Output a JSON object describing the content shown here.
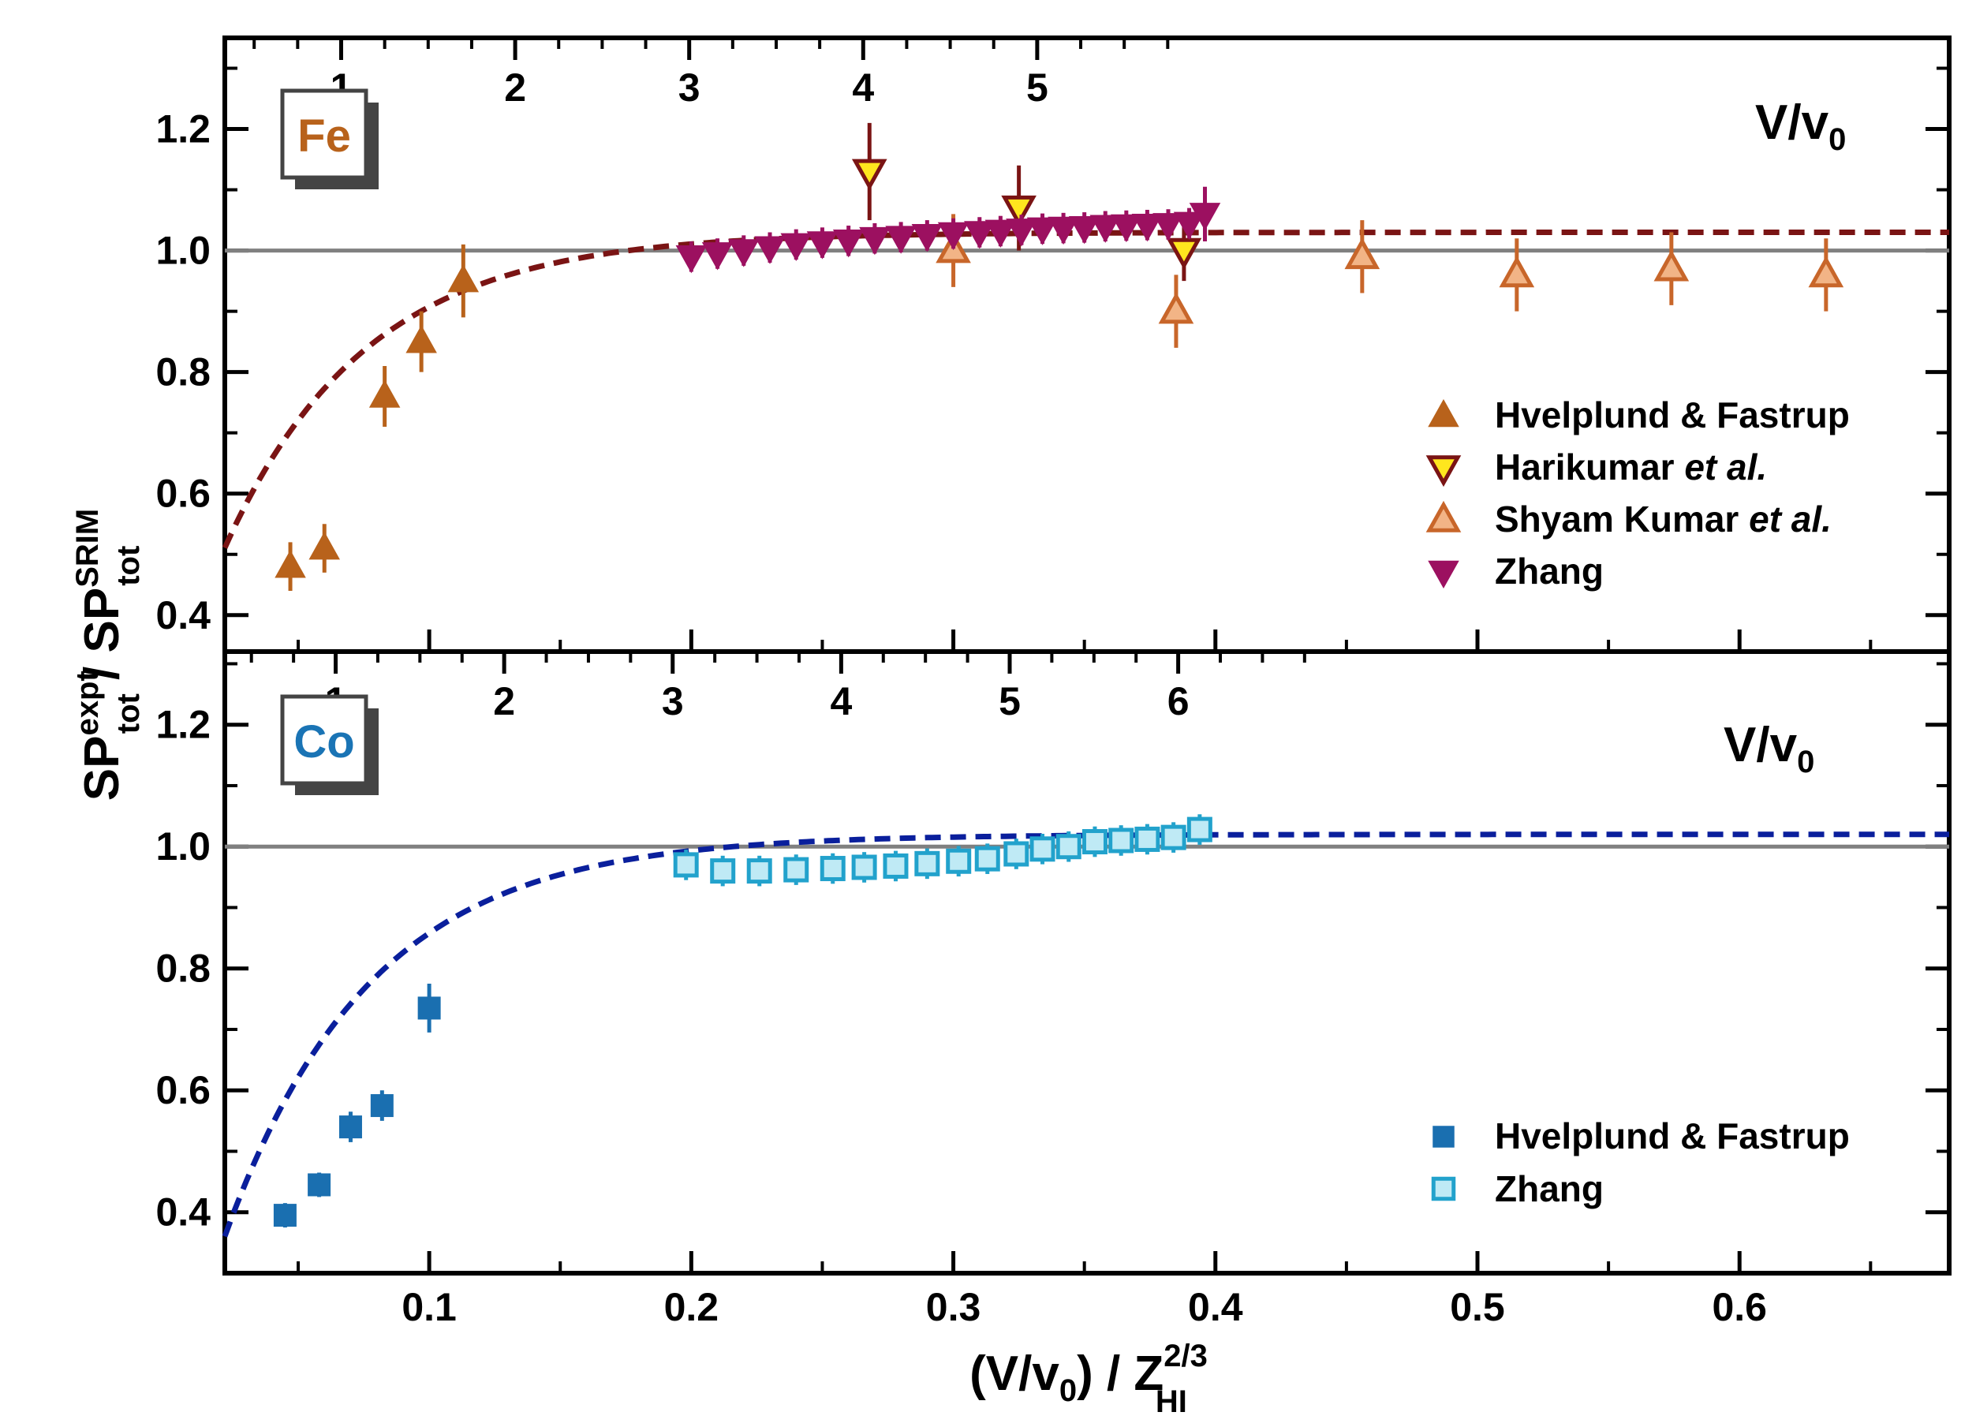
{
  "chart_data": [
    {
      "panel": "top",
      "type": "scatter",
      "element_label": "Fe",
      "element_color": "#b8621b",
      "secondary_axis_label": "V/v",
      "secondary_axis_label_sub": "0",
      "secondary_ticks": [
        "1",
        "2",
        "3",
        "4",
        "5"
      ],
      "secondary_tick_values": [
        1,
        2,
        3,
        4,
        5
      ],
      "ylim": [
        0.34,
        1.35
      ],
      "yticks": [
        "0.4",
        "0.6",
        "0.8",
        "1.0",
        "1.2"
      ],
      "ytick_values": [
        0.4,
        0.6,
        0.8,
        1.0,
        1.2
      ],
      "reference_line": 1.0,
      "fit_curve": {
        "style": "dashed",
        "color": "#7a1414",
        "a": 1.03,
        "b": 0.78,
        "c": 18.5
      },
      "legend_position": "right",
      "series": [
        {
          "name": "Hvelplund & Fastrup",
          "marker": "triangle-up-filled",
          "fill": "#b8621b",
          "stroke": "#b8621b",
          "x": [
            0.047,
            0.06,
            0.083,
            0.097,
            0.113
          ],
          "y": [
            0.48,
            0.51,
            0.76,
            0.85,
            0.95
          ],
          "err": [
            0.04,
            0.04,
            0.05,
            0.05,
            0.06
          ]
        },
        {
          "name": "Harikumar",
          "name_suffix": "et al.",
          "marker": "triangle-down-open",
          "fill": "#ffe61e",
          "stroke": "#7a1414",
          "x": [
            0.268,
            0.325,
            0.388
          ],
          "y": [
            1.13,
            1.07,
            1.0
          ],
          "err": [
            0.08,
            0.07,
            0.05
          ]
        },
        {
          "name": "Shyam Kumar",
          "name_suffix": "et al.",
          "marker": "triangle-up-open",
          "fill": "#f2b486",
          "stroke": "#c8662a",
          "x": [
            0.3,
            0.385,
            0.456,
            0.515,
            0.574,
            0.633
          ],
          "y": [
            1.0,
            0.9,
            0.99,
            0.96,
            0.97,
            0.96
          ],
          "err": [
            0.06,
            0.06,
            0.06,
            0.06,
            0.06,
            0.06
          ]
        },
        {
          "name": "Zhang",
          "marker": "triangle-down-filled",
          "fill": "#9c1060",
          "stroke": "#9c1060",
          "x": [
            0.2,
            0.21,
            0.22,
            0.23,
            0.24,
            0.25,
            0.26,
            0.27,
            0.28,
            0.29,
            0.3,
            0.31,
            0.318,
            0.326,
            0.334,
            0.342,
            0.35,
            0.358,
            0.366,
            0.374,
            0.382,
            0.39,
            0.396
          ],
          "y": [
            0.99,
            0.995,
            1.0,
            1.005,
            1.01,
            1.013,
            1.016,
            1.02,
            1.022,
            1.025,
            1.028,
            1.03,
            1.032,
            1.034,
            1.036,
            1.037,
            1.038,
            1.04,
            1.041,
            1.042,
            1.043,
            1.045,
            1.06
          ],
          "err": [
            0.025,
            0.025,
            0.025,
            0.025,
            0.025,
            0.025,
            0.025,
            0.025,
            0.025,
            0.025,
            0.025,
            0.025,
            0.025,
            0.025,
            0.025,
            0.025,
            0.025,
            0.025,
            0.025,
            0.025,
            0.025,
            0.025,
            0.045
          ]
        }
      ]
    },
    {
      "panel": "bottom",
      "type": "scatter",
      "element_label": "Co",
      "element_color": "#1a74b5",
      "secondary_axis_label": "V/v",
      "secondary_axis_label_sub": "0",
      "secondary_ticks": [
        "1",
        "2",
        "3",
        "4",
        "5",
        "6"
      ],
      "secondary_tick_values": [
        1,
        2,
        3,
        4,
        5,
        6
      ],
      "ylim": [
        0.3,
        1.32
      ],
      "yticks": [
        "0.4",
        "0.6",
        "0.8",
        "1.0",
        "1.2"
      ],
      "ytick_values": [
        0.4,
        0.6,
        0.8,
        1.0,
        1.2
      ],
      "reference_line": 1.0,
      "fit_curve": {
        "style": "dashed",
        "color": "#0a1f9c",
        "a": 1.02,
        "b": 0.98,
        "c": 18.0
      },
      "legend_position": "bottom-right",
      "series": [
        {
          "name": "Hvelplund & Fastrup",
          "marker": "square-filled",
          "fill": "#1a6fb0",
          "stroke": "#1a6fb0",
          "x": [
            0.045,
            0.058,
            0.07,
            0.082,
            0.1
          ],
          "y": [
            0.395,
            0.445,
            0.54,
            0.575,
            0.735
          ],
          "err": [
            0.02,
            0.02,
            0.025,
            0.025,
            0.04
          ]
        },
        {
          "name": "Zhang",
          "marker": "square-open",
          "fill": "#bfeaf5",
          "stroke": "#22a2cc",
          "x": [
            0.198,
            0.212,
            0.226,
            0.24,
            0.254,
            0.266,
            0.278,
            0.29,
            0.302,
            0.313,
            0.324,
            0.334,
            0.344,
            0.354,
            0.364,
            0.374,
            0.384,
            0.394
          ],
          "y": [
            0.97,
            0.96,
            0.96,
            0.962,
            0.964,
            0.966,
            0.968,
            0.972,
            0.976,
            0.98,
            0.988,
            0.996,
            1.0,
            1.008,
            1.01,
            1.012,
            1.015,
            1.028
          ],
          "err": [
            0.025,
            0.025,
            0.025,
            0.025,
            0.025,
            0.025,
            0.025,
            0.025,
            0.025,
            0.025,
            0.025,
            0.025,
            0.025,
            0.025,
            0.025,
            0.025,
            0.025,
            0.025
          ]
        }
      ]
    }
  ],
  "shared_xaxis": {
    "xlim": [
      0.022,
      0.68
    ],
    "ticks": [
      "0.1",
      "0.2",
      "0.3",
      "0.4",
      "0.5",
      "0.6"
    ],
    "tick_values": [
      0.1,
      0.2,
      0.3,
      0.4,
      0.5,
      0.6
    ],
    "xlabel_main": "(V/v",
    "xlabel_sub0": "0",
    "xlabel_mid": ") / Z",
    "xlabel_sup": "2/3",
    "xlabel_sub": "HI"
  },
  "yaxis_label": {
    "sp": "SP",
    "sup_expt": "expt",
    "sub_tot": "tot",
    "slash": " / SP",
    "sup_srim": "SRIM",
    "sub_tot2": "tot"
  }
}
